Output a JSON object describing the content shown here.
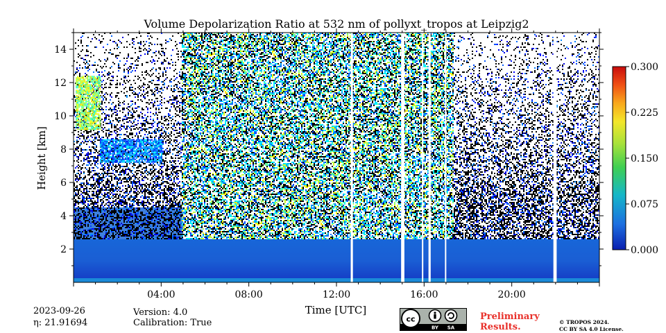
{
  "figure": {
    "title": "Volume Depolarization Ratio at 532 nm of pollyxt_tropos at Leipzig2",
    "date": "2023-09-26",
    "eta": "η: 21.91694",
    "version": "Version: 4.0",
    "calibration": "Calibration: True",
    "preliminary_line1": "Preliminary",
    "preliminary_line2": "Results.",
    "copyright_line1": "© TROPOS 2024.",
    "copyright_line2": "CC BY SA 4.0 License.",
    "license_badge": {
      "icon": "cc-by-sa-icon",
      "cc": "cc",
      "by": "BY",
      "sa": "SA"
    },
    "colors": {
      "preliminary": "#e8302a",
      "colorbar": [
        "#0a1fb0",
        "#1d6fe0",
        "#15b7c8",
        "#3fcf52",
        "#cde82c",
        "#f9c81c",
        "#f06a14",
        "#d01010"
      ]
    }
  },
  "chart_data": {
    "type": "heatmap",
    "title": "Volume Depolarization Ratio at 532 nm of pollyxt_tropos at Leipzig2",
    "xlabel": "Time [UTC]",
    "ylabel": "Height [km]",
    "x_range_hours": [
      0,
      24
    ],
    "y_range_km": [
      0,
      15
    ],
    "x_ticks": [
      "04:00",
      "08:00",
      "12:00",
      "16:00",
      "20:00"
    ],
    "x_tick_hours": [
      4,
      8,
      12,
      16,
      20
    ],
    "y_ticks": [
      2,
      4,
      6,
      8,
      10,
      12,
      14
    ],
    "colorbar": {
      "min": 0.0,
      "max": 0.3,
      "ticks": [
        "0.000",
        "0.075",
        "0.150",
        "0.225",
        "0.300"
      ],
      "colormap": "jet"
    },
    "boundary_layer": {
      "description_top_km": 2.6,
      "residual_layer_top_km": 4.5,
      "depolarization": 0.03
    },
    "aerosol_layers": [
      {
        "t_start_h": 0.1,
        "t_end_h": 1.2,
        "h_bottom_km": 9.2,
        "h_top_km": 12.4,
        "depolarization": 0.16
      },
      {
        "t_start_h": 1.2,
        "t_end_h": 4.0,
        "h_bottom_km": 7.2,
        "h_top_km": 8.6,
        "depolarization": 0.08
      }
    ],
    "high_noise_period_h": [
      4.9,
      17.3
    ],
    "data_gaps_h": [
      [
        12.65,
        12.75
      ],
      [
        14.95,
        15.1
      ],
      [
        15.9,
        15.95
      ],
      [
        16.2,
        16.3
      ],
      [
        16.95,
        17.0
      ],
      [
        21.9,
        22.05
      ]
    ]
  }
}
